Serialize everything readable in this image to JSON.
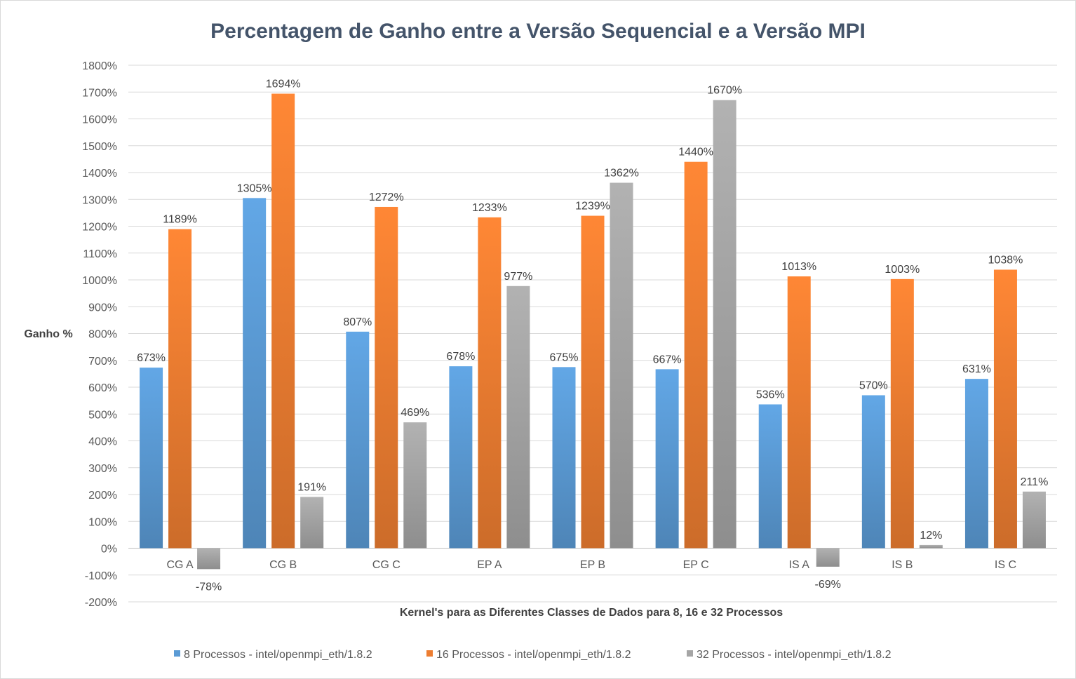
{
  "chart_data": {
    "type": "bar",
    "title": "Percentagem de Ganho entre a Versão Sequencial e a Versão MPI",
    "xlabel": "Kernel's para as Diferentes Classes de Dados para 8, 16 e 32 Processos",
    "ylabel": "Ganho %",
    "ylim": [
      -200,
      1800
    ],
    "y_ticks": [
      1800,
      1700,
      1600,
      1500,
      1400,
      1300,
      1200,
      1100,
      1000,
      900,
      800,
      700,
      600,
      500,
      400,
      300,
      200,
      100,
      0,
      -100,
      -200
    ],
    "y_tick_labels": [
      "1800%",
      "1700%",
      "1600%",
      "1500%",
      "1400%",
      "1300%",
      "1200%",
      "1100%",
      "1000%",
      "900%",
      "800%",
      "700%",
      "600%",
      "500%",
      "400%",
      "300%",
      "200%",
      "100%",
      "0%",
      "-100%",
      "-200%"
    ],
    "categories": [
      "CG A",
      "CG B",
      "CG C",
      "EP A",
      "EP B",
      "EP C",
      "IS A",
      "IS B",
      "IS C"
    ],
    "series": [
      {
        "name": "8 Processos - intel/openmpi_eth/1.8.2",
        "color": "#5b9bd5",
        "values": [
          673,
          1305,
          807,
          678,
          675,
          667,
          536,
          570,
          631
        ],
        "labels": [
          "673%",
          "1305%",
          "807%",
          "678%",
          "675%",
          "667%",
          "536%",
          "570%",
          "631%"
        ]
      },
      {
        "name": "16 Processos - intel/openmpi_eth/1.8.2",
        "color": "#ed7d31",
        "values": [
          1189,
          1694,
          1272,
          1233,
          1239,
          1440,
          1013,
          1003,
          1038
        ],
        "labels": [
          "1189%",
          "1694%",
          "1272%",
          "1233%",
          "1239%",
          "1440%",
          "1013%",
          "1003%",
          "1038%"
        ]
      },
      {
        "name": "32 Processos - intel/openmpi_eth/1.8.2",
        "color": "#a5a5a5",
        "values": [
          -78,
          191,
          469,
          977,
          1362,
          1670,
          -69,
          12,
          211
        ],
        "labels": [
          "-78%",
          "191%",
          "469%",
          "977%",
          "1362%",
          "1670%",
          "-69%",
          "12%",
          "211%"
        ]
      }
    ],
    "grid": true,
    "legend_position": "bottom"
  }
}
